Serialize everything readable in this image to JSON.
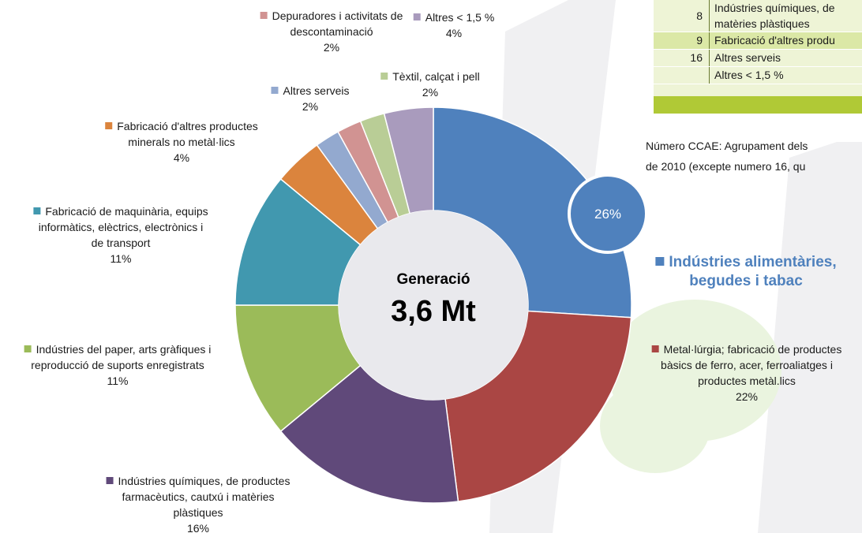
{
  "chart_data": {
    "type": "donut",
    "center_label": "Generació",
    "center_value": "3,6 Mt",
    "categories": [
      "Indústries alimentàries,\nbegudes i tabac",
      "Metal·lúrgia; fabricació de productes\nbàsics de ferro, acer, ferroaliatges i\nproductes metàl.lics",
      "Indústries químiques, de productes\nfarmacèutics, cautxú i matèries\nplàstiques",
      "Indústries del paper, arts gràfiques i\nreproducció de suports enregistrats",
      "Fabricació de maquinària, equips\ninformàtics, elèctrics, electrònics i\nde transport",
      "Fabricació d'altres productes\nminerals no metàl·lics",
      "Altres serveis",
      "Depuradores i activitats de\ndescontaminació",
      "Tèxtil, calçat i pell",
      "Altres < 1,5 %"
    ],
    "values": [
      26,
      22,
      16,
      11,
      11,
      4,
      2,
      2,
      2,
      4
    ],
    "value_labels": [
      "26%",
      "22%",
      "16%",
      "11%",
      "11%",
      "4%",
      "2%",
      "2%",
      "2%",
      "4%"
    ],
    "colors": [
      "#4f81bd",
      "#aa4644",
      "#60497a",
      "#9bbb59",
      "#4198af",
      "#db843d",
      "#93a9cf",
      "#d19392",
      "#b9cd96",
      "#a99bbd"
    ]
  },
  "table": {
    "rows": [
      {
        "number": "8",
        "text": "Indústries químiques, de\nmatèries plàstiques"
      },
      {
        "number": "9",
        "text": "Fabricació d'altres produ"
      },
      {
        "number": "16",
        "text": "Altres serveis"
      },
      {
        "text": "Altres < 1,5 %"
      }
    ]
  },
  "note": "Número CCAE: Agrupament dels\nde 2010 (excepte numero 16, qu"
}
